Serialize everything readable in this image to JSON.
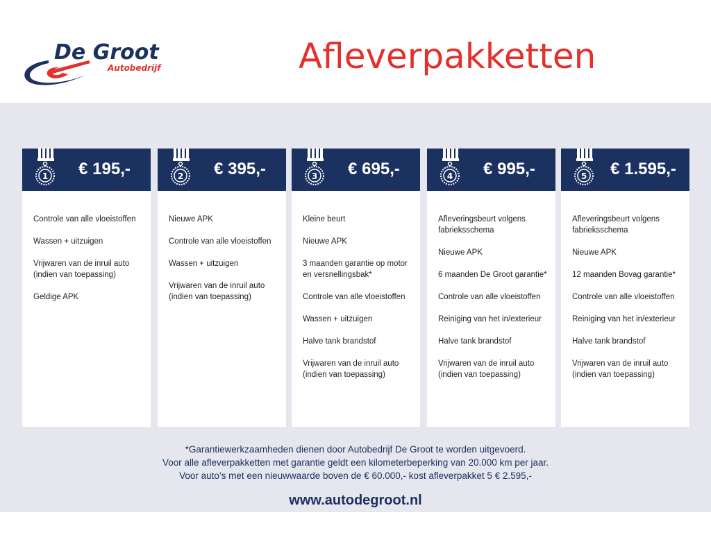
{
  "logo": {
    "name": "De Groot",
    "sub": "Autobedrijf"
  },
  "title": "Afleverpakketten",
  "colors": {
    "navy": "#1b3160",
    "red": "#e2312b",
    "background": "#e6e7ee"
  },
  "packages": [
    {
      "number": "1",
      "price": "€ 195,-",
      "items": [
        "Controle van alle vloeistoffen",
        "Wassen + uitzuigen",
        "Vrijwaren van de inruil auto (indien van toepassing)",
        "Geldige APK"
      ]
    },
    {
      "number": "2",
      "price": "€ 395,-",
      "items": [
        "Nieuwe APK",
        "Controle van alle vloeistoffen",
        "Wassen + uitzuigen",
        "Vrijwaren van de inruil auto (indien van toepassing)"
      ]
    },
    {
      "number": "3",
      "price": "€ 695,-",
      "items": [
        "Kleine beurt",
        "Nieuwe APK",
        "3 maanden garantie op motor en versnellingsbak*",
        "Controle van alle vloeistoffen",
        "Wassen + uitzuigen",
        "Halve tank brandstof",
        "Vrijwaren van de inruil auto (indien van toepassing)"
      ]
    },
    {
      "number": "4",
      "price": "€ 995,-",
      "items": [
        "Afleveringsbeurt volgens fabrieksschema",
        "Nieuwe APK",
        "6 maanden De Groot garantie*",
        "Controle van alle vloeistoffen",
        "Reiniging van het in/exterieur",
        "Halve tank brandstof",
        "Vrijwaren van de inruil auto (indien van toepassing)"
      ]
    },
    {
      "number": "5",
      "price": "€ 1.595,-",
      "items": [
        "Afleveringsbeurt volgens fabrieksschema",
        "Nieuwe APK",
        "12 maanden Bovag garantie*",
        "Controle van alle vloeistoffen",
        "Reiniging van het in/exterieur",
        "Halve tank brandstof",
        "Vrijwaren van de inruil auto (indien van toepassing)"
      ]
    }
  ],
  "footer": [
    "*Garantiewerkzaamheden dienen door Autobedrijf De Groot te worden uitgevoerd.",
    "Voor alle afleverpakketten met garantie geldt een kilometerbeperking van 20.000 km per jaar.",
    "Voor auto’s met een nieuwwaarde boven de € 60.000,- kost afleverpakket 5 € 2.595,-"
  ],
  "url": "www.autodegroot.nl"
}
